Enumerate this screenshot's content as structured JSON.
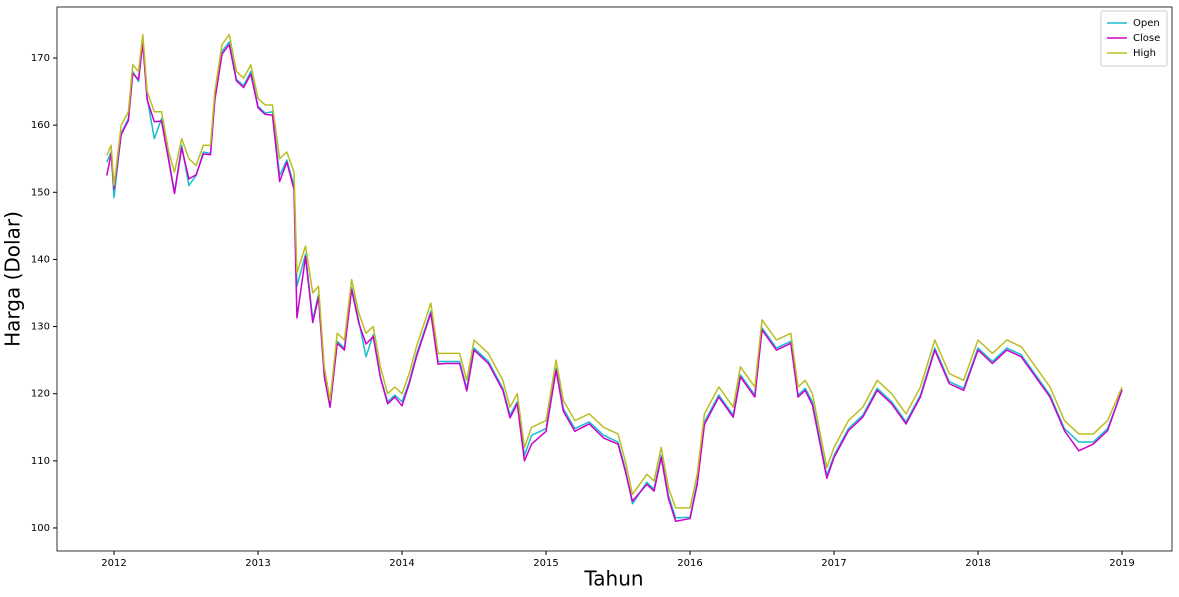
{
  "chart_data": {
    "type": "line",
    "xlabel": "Tahun",
    "ylabel": "Harga (Dolar)",
    "x": [
      2011.95,
      2011.98,
      2012.0,
      2012.05,
      2012.1,
      2012.13,
      2012.17,
      2012.2,
      2012.23,
      2012.28,
      2012.33,
      2012.38,
      2012.42,
      2012.47,
      2012.52,
      2012.57,
      2012.62,
      2012.67,
      2012.7,
      2012.75,
      2012.8,
      2012.85,
      2012.9,
      2012.95,
      2013.0,
      2013.05,
      2013.1,
      2013.15,
      2013.2,
      2013.25,
      2013.27,
      2013.33,
      2013.38,
      2013.42,
      2013.46,
      2013.5,
      2013.55,
      2013.6,
      2013.65,
      2013.7,
      2013.75,
      2013.8,
      2013.85,
      2013.9,
      2013.95,
      2014.0,
      2014.05,
      2014.1,
      2014.2,
      2014.25,
      2014.3,
      2014.4,
      2014.45,
      2014.5,
      2014.6,
      2014.7,
      2014.75,
      2014.8,
      2014.85,
      2014.9,
      2015.0,
      2015.07,
      2015.12,
      2015.2,
      2015.3,
      2015.4,
      2015.5,
      2015.55,
      2015.6,
      2015.7,
      2015.75,
      2015.8,
      2015.85,
      2015.9,
      2016.0,
      2016.05,
      2016.1,
      2016.2,
      2016.3,
      2016.35,
      2016.45,
      2016.5,
      2016.6,
      2016.7,
      2016.75,
      2016.8,
      2016.85,
      2016.95,
      2017.0,
      2017.1,
      2017.2,
      2017.3,
      2017.4,
      2017.5,
      2017.6,
      2017.7,
      2017.8,
      2017.9,
      2018.0,
      2018.1,
      2018.2,
      2018.3,
      2018.4,
      2018.5,
      2018.6,
      2018.7,
      2018.8,
      2018.9,
      2019.0
    ],
    "series": [
      {
        "name": "Open",
        "color": "#17becf",
        "values": [
          154.5,
          156,
          149.2,
          158.8,
          161,
          168,
          166.5,
          172.5,
          164,
          158,
          161,
          155,
          150,
          157,
          151,
          152.5,
          156,
          155.8,
          164,
          171,
          172.4,
          166.8,
          165.9,
          168,
          162.8,
          161.8,
          162,
          152.5,
          154.8,
          151,
          136,
          140.8,
          131,
          134.8,
          122.8,
          118,
          127.8,
          126.8,
          135.8,
          130.8,
          125.5,
          128.8,
          122.5,
          118.8,
          119.8,
          118.8,
          121.8,
          125.8,
          132.3,
          124.8,
          124.8,
          124.8,
          120.8,
          126.8,
          124.8,
          120.8,
          116.8,
          118.8,
          110.8,
          113.8,
          114.8,
          123.8,
          117.8,
          114.8,
          115.8,
          113.8,
          112.8,
          108.8,
          103.6,
          106.8,
          105.8,
          110.8,
          104.8,
          101.5,
          101.6,
          106.8,
          115.8,
          119.8,
          116.8,
          122.8,
          119.8,
          129.8,
          126.8,
          127.8,
          119.8,
          120.8,
          118.8,
          107.8,
          110.8,
          114.8,
          116.8,
          120.8,
          118.8,
          115.8,
          119.8,
          126.8,
          121.8,
          120.8,
          126.8,
          124.8,
          126.8,
          125.8,
          122.8,
          119.8,
          114.8,
          112.8,
          112.8,
          114.8,
          120.5
        ]
      },
      {
        "name": "Close",
        "color": "#cc00cc",
        "values": [
          152.5,
          155.8,
          150.5,
          158.6,
          160.7,
          167.7,
          166.8,
          172.2,
          163.8,
          160.5,
          160.6,
          154.7,
          149.8,
          156.6,
          152,
          152.6,
          155.7,
          155.6,
          163.7,
          170.6,
          172,
          166.6,
          165.6,
          167.6,
          162.6,
          161.6,
          161.5,
          151.6,
          154.5,
          150.4,
          131.3,
          140.4,
          130.6,
          134.4,
          122.6,
          118,
          127.5,
          126.5,
          135.5,
          130.5,
          127.4,
          128.5,
          122.4,
          118.5,
          119.5,
          118.2,
          121.5,
          125.5,
          132,
          124.4,
          124.5,
          124.5,
          120.4,
          126.5,
          124.5,
          120.5,
          116.4,
          118.5,
          110,
          112.5,
          114.4,
          123.5,
          117.4,
          114.4,
          115.5,
          113.4,
          112.5,
          108.5,
          104,
          106.5,
          105.5,
          110.5,
          104.4,
          101,
          101.4,
          106.5,
          115.4,
          119.5,
          116.5,
          122.5,
          119.5,
          129.5,
          126.5,
          127.5,
          119.5,
          120.5,
          118.3,
          107.4,
          110.5,
          114.5,
          116.5,
          120.5,
          118.5,
          115.5,
          119.5,
          126.5,
          121.5,
          120.5,
          126.5,
          124.5,
          126.5,
          125.5,
          122.5,
          119.5,
          114.5,
          111.5,
          112.5,
          114.5,
          120.6
        ]
      },
      {
        "name": "High",
        "color": "#bcbd22",
        "values": [
          155.5,
          157,
          151,
          160,
          162,
          169,
          168,
          173.5,
          165,
          162,
          162,
          156,
          153,
          158,
          155,
          154,
          157,
          157,
          165,
          172,
          173.5,
          168,
          167,
          169,
          164,
          163,
          163,
          155,
          156,
          153,
          138,
          142,
          135,
          136,
          124,
          119,
          129,
          128,
          137,
          132,
          129,
          130,
          124,
          120,
          121,
          120,
          123,
          127,
          133.5,
          126,
          126,
          126,
          122,
          128,
          126,
          122,
          118,
          120,
          112,
          115,
          116,
          125,
          119,
          116,
          117,
          115,
          114,
          110,
          105,
          108,
          107,
          112,
          106,
          103,
          103,
          108,
          117,
          121,
          118,
          124,
          121,
          131,
          128,
          129,
          121,
          122,
          120,
          109,
          112,
          116,
          118,
          122,
          120,
          117,
          121,
          128,
          123,
          122,
          128,
          126,
          128,
          127,
          124,
          121,
          116,
          114,
          114,
          116,
          121
        ]
      }
    ],
    "xlim": [
      2011.604,
      2019.347
    ],
    "xticks": [
      2012,
      2013,
      2014,
      2015,
      2016,
      2017,
      2018,
      2019
    ],
    "ylim": [
      96.57,
      177.6
    ],
    "yticks": [
      100,
      110,
      120,
      130,
      140,
      150,
      160,
      170
    ],
    "legend": "upper right",
    "grid": false
  }
}
